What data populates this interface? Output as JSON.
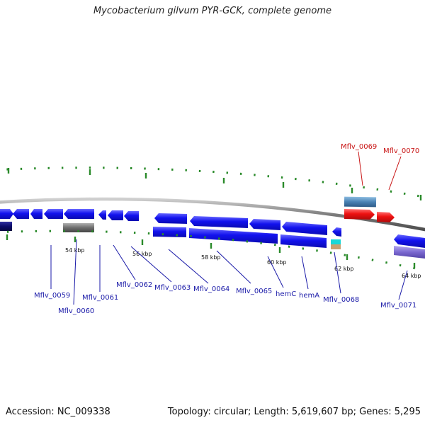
{
  "title": "Mycobacterium gilvum PYR-GCK, complete genome",
  "footer": {
    "accession": "Accession: NC_009338",
    "summary": "Topology: circular; Length: 5,619,607 bp; Genes: 5,295"
  },
  "scale_labels": [
    "54 kbp",
    "56 kbp",
    "58 kbp",
    "60 kbp",
    "62 kbp",
    "64 kbp"
  ],
  "gene_labels": [
    {
      "text": "Mflv_0059",
      "color": "blue"
    },
    {
      "text": "Mflv_0060",
      "color": "blue"
    },
    {
      "text": "Mflv_0061",
      "color": "blue"
    },
    {
      "text": "Mflv_0062",
      "color": "blue"
    },
    {
      "text": "Mflv_0063",
      "color": "blue"
    },
    {
      "text": "Mflv_0064",
      "color": "blue"
    },
    {
      "text": "Mflv_0065",
      "color": "blue"
    },
    {
      "text": "hemC",
      "color": "blue"
    },
    {
      "text": "hemA",
      "color": "blue"
    },
    {
      "text": "Mflv_0068",
      "color": "blue"
    },
    {
      "text": "Mflv_0069",
      "color": "red"
    },
    {
      "text": "Mflv_0070",
      "color": "red"
    },
    {
      "text": "Mflv_0071",
      "color": "blue"
    }
  ],
  "colors": {
    "gene_blue": "#1010e8",
    "gene_red": "#e81010",
    "label_blue": "#1a1aa8",
    "label_red": "#c81414",
    "backbone": "#8c8c8c",
    "tick": "#2a8a2a",
    "rna_grey": "#6e6e6e",
    "dark_navy": "#0c0c6a",
    "steel_blue": "#4a82b4",
    "cyan": "#18d8d8",
    "tan": "#c8a070",
    "lavender": "#7a68d0"
  }
}
